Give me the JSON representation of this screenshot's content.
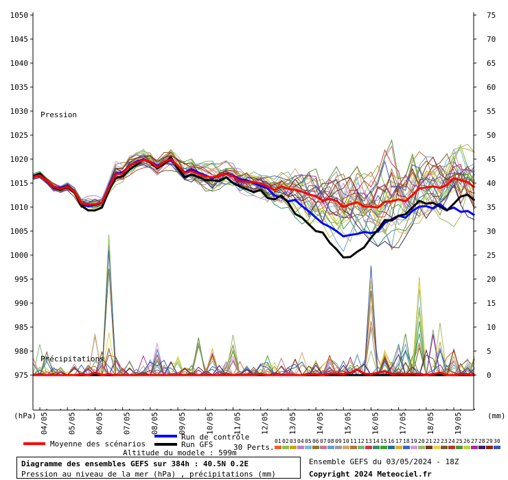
{
  "chart_data": {
    "type": "line",
    "title": "Diagramme des ensembles GEFS sur 384h : 40.5N 0.2E",
    "subtitle": "Pression au niveau de la mer (hPa) , précipitations (mm)",
    "left_axis": {
      "unit": "(hPa)",
      "ylim": [
        970,
        1050
      ],
      "ticks": [
        "1050",
        "1045",
        "1040",
        "1035",
        "1030",
        "1025",
        "1020",
        "1015",
        "1010",
        "1005",
        "1000",
        "995",
        "990",
        "985",
        "980",
        "975"
      ]
    },
    "right_axis": {
      "unit": "(mm)",
      "ylim": [
        0,
        75
      ],
      "ticks": [
        "75",
        "70",
        "65",
        "60",
        "55",
        "50",
        "45",
        "40",
        "35",
        "30",
        "25",
        "20",
        "15",
        "10",
        "5",
        "0"
      ]
    },
    "x_labels": [
      "04/05",
      "05/05",
      "06/05",
      "07/05",
      "08/05",
      "09/05",
      "10/05",
      "11/05",
      "12/05",
      "13/05",
      "14/05",
      "15/05",
      "16/05",
      "17/05",
      "18/05",
      "19/05"
    ],
    "annotations": {
      "pressure": "Pression",
      "precip": "Précipitations"
    },
    "grid": false,
    "steps_per_day": 4,
    "day0_step_offset": 1,
    "series": [
      {
        "name": "Moyenne des scénarios",
        "color": "#ff0000",
        "pressure": [
          1016.3,
          1016.6,
          1015.5,
          1014.2,
          1013.8,
          1014.3,
          1013.2,
          1010.8,
          1010.5,
          1010.6,
          1010.9,
          1014.0,
          1016.8,
          1017.0,
          1018.6,
          1019.3,
          1019.8,
          1019.5,
          1018.3,
          1019.4,
          1020.0,
          1018.6,
          1017.1,
          1017.5,
          1016.9,
          1016.4,
          1016.2,
          1016.5,
          1016.9,
          1016.4,
          1015.4,
          1015.3,
          1015.2,
          1014.9,
          1014.3,
          1013.5,
          1014.3,
          1013.8,
          1013.6,
          1013.2,
          1012.6,
          1012.3,
          1011.3,
          1011.7,
          1011.3,
          1010.0,
          1010.6,
          1011.0,
          1010.1,
          1010.1,
          1009.9,
          1011.1,
          1011.2,
          1011.6,
          1011.2,
          1012.5,
          1013.9,
          1014.1,
          1014.3,
          1014.0,
          1014.6,
          1016.0,
          1015.6,
          1015.2,
          1014.1
        ],
        "precip": [
          0.0,
          0.0,
          0.0,
          0.0,
          0.0,
          0.0,
          0.0,
          0.2,
          0.0,
          0.5,
          0.0,
          0.2,
          0.0,
          0.0,
          0.0,
          0.0,
          0.0,
          0.0,
          0.0,
          0.0,
          0.0,
          0.0,
          0.0,
          0.0,
          0.0,
          0.0,
          0.0,
          0.0,
          0.0,
          0.0,
          0.0,
          0.0,
          0.0,
          0.2,
          0.0,
          0.0,
          0.0,
          0.0,
          0.0,
          0.0,
          0.2,
          0.2,
          0.0,
          0.3,
          0.3,
          0.2,
          0.5,
          1.2,
          0.3,
          0.2,
          0.5,
          0.8,
          0.2,
          0.3,
          0.2,
          0.3,
          0.2,
          0.0,
          0.2,
          0.5,
          0.0,
          0.0,
          0.2,
          0.2,
          0.0
        ]
      },
      {
        "name": "Run de contrôle",
        "color": "#0000ff",
        "pressure": [
          1016.5,
          1016.9,
          1015.4,
          1014.2,
          1014.0,
          1014.5,
          1013.1,
          1010.5,
          1010.2,
          1010.5,
          1010.9,
          1014.1,
          1016.9,
          1017.3,
          1018.5,
          1019.5,
          1019.9,
          1019.5,
          1018.6,
          1019.3,
          1019.8,
          1018.6,
          1017.2,
          1017.9,
          1017.2,
          1016.6,
          1016.0,
          1016.5,
          1017.0,
          1016.6,
          1015.8,
          1015.6,
          1015.0,
          1014.4,
          1013.9,
          1012.4,
          1012.1,
          1011.2,
          1011.5,
          1010.2,
          1009.1,
          1007.8,
          1006.6,
          1005.9,
          1005.0,
          1003.9,
          1004.2,
          1004.4,
          1004.8,
          1004.6,
          1004.9,
          1006.7,
          1007.5,
          1008.2,
          1007.8,
          1009.2,
          1010.1,
          1010.2,
          1009.7,
          1010.6,
          1009.4,
          1009.9,
          1009.0,
          1009.2,
          1008.3
        ],
        "precip": [
          0.0,
          0.0,
          0.0,
          0.0,
          0.0,
          0.0,
          0.0,
          0.0,
          0.0,
          0.0,
          0.0,
          0.0,
          0.0,
          0.0,
          0.0,
          0.0,
          0.0,
          0.0,
          0.0,
          0.0,
          0.0,
          0.0,
          0.0,
          0.0,
          0.0,
          0.0,
          0.0,
          0.0,
          0.0,
          0.0,
          0.0,
          0.0,
          0.0,
          0.0,
          0.0,
          0.0,
          0.0,
          0.0,
          0.0,
          0.0,
          0.0,
          0.0,
          0.0,
          0.0,
          0.0,
          0.0,
          0.0,
          0.0,
          0.0,
          0.0,
          0.0,
          0.0,
          0.0,
          0.0,
          0.0,
          0.0,
          0.0,
          0.0,
          0.0,
          0.0,
          0.0,
          0.0,
          0.0,
          0.0,
          0.0
        ]
      },
      {
        "name": "Run GFS",
        "color": "#000000",
        "pressure": [
          1016.4,
          1017.0,
          1015.5,
          1014.1,
          1013.6,
          1014.2,
          1013.0,
          1010.3,
          1009.3,
          1009.3,
          1009.9,
          1013.4,
          1016.1,
          1016.4,
          1017.8,
          1018.8,
          1019.9,
          1019.3,
          1018.1,
          1019.0,
          1020.4,
          1018.1,
          1016.2,
          1016.8,
          1016.3,
          1015.6,
          1015.6,
          1015.4,
          1016.2,
          1015.0,
          1014.3,
          1013.7,
          1013.1,
          1013.6,
          1011.9,
          1011.6,
          1012.4,
          1010.9,
          1008.6,
          1007.8,
          1006.4,
          1005.0,
          1004.7,
          1002.6,
          1001.2,
          999.5,
          999.6,
          1000.7,
          1001.6,
          1003.6,
          1005.3,
          1007.3,
          1007.2,
          1008.2,
          1008.5,
          1009.9,
          1011.3,
          1010.7,
          1010.9,
          1010.1,
          1009.3,
          1010.7,
          1012.2,
          1012.6,
          1011.4
        ],
        "precip": [
          0.0,
          0.0,
          0.0,
          0.0,
          0.0,
          0.0,
          0.0,
          0.0,
          0.0,
          0.0,
          0.0,
          0.0,
          0.0,
          0.0,
          0.0,
          0.0,
          0.0,
          0.0,
          0.0,
          0.0,
          0.0,
          0.0,
          0.0,
          0.0,
          0.0,
          0.0,
          0.0,
          0.0,
          0.0,
          0.0,
          0.0,
          0.0,
          0.0,
          0.0,
          0.0,
          0.0,
          0.0,
          0.0,
          0.0,
          0.0,
          0.0,
          0.0,
          0.0,
          0.0,
          0.0,
          0.0,
          0.0,
          0.0,
          0.0,
          0.0,
          0.0,
          0.0,
          0.0,
          0.0,
          0.0,
          0.0,
          0.0,
          0.0,
          0.0,
          0.0,
          0.0,
          0.0,
          0.0,
          0.0,
          0.0
        ]
      }
    ],
    "perturbations": {
      "count": 30,
      "colors": [
        "#e9622d",
        "#8cc051",
        "#c3a523",
        "#bd7ed8",
        "#7cb8d5",
        "#8d7a36",
        "#c27c8d",
        "#6b9fd4",
        "#9e9e9e",
        "#d4a672",
        "#b17643",
        "#7fb47e",
        "#c63c4a",
        "#3b8c6e",
        "#3ba32c",
        "#2e6b94",
        "#d8b233",
        "#3a67c6",
        "#d49adc",
        "#9db86c",
        "#6b3b1f",
        "#e2d648",
        "#7a5b2e",
        "#a83c2d",
        "#5c8e3b",
        "#b8d640",
        "#a7319b",
        "#3a1e6e",
        "#7d2a1e",
        "#3d56b6"
      ],
      "pressure_spread": [
        [
          1015.7,
          1017.3
        ],
        [
          1016.1,
          1017.7
        ],
        [
          1014.8,
          1016.3
        ],
        [
          1013.0,
          1015.2
        ],
        [
          1012.8,
          1014.6
        ],
        [
          1013.0,
          1015.3
        ],
        [
          1011.8,
          1014.1
        ],
        [
          1008.8,
          1011.6
        ],
        [
          1008.9,
          1012.3
        ],
        [
          1008.6,
          1012.4
        ],
        [
          1009.2,
          1012.9
        ],
        [
          1012.2,
          1016.0
        ],
        [
          1014.6,
          1020.1
        ],
        [
          1015.2,
          1020.0
        ],
        [
          1016.1,
          1021.2
        ],
        [
          1017.5,
          1021.9
        ],
        [
          1017.6,
          1022.4
        ],
        [
          1017.2,
          1021.3
        ],
        [
          1016.2,
          1019.9
        ],
        [
          1017.4,
          1021.4
        ],
        [
          1017.3,
          1022.3
        ],
        [
          1016.8,
          1020.9
        ],
        [
          1014.4,
          1019.9
        ],
        [
          1014.6,
          1020.5
        ],
        [
          1013.3,
          1019.3
        ],
        [
          1012.0,
          1019.5
        ],
        [
          1012.2,
          1019.6
        ],
        [
          1013.2,
          1019.0
        ],
        [
          1013.7,
          1019.7
        ],
        [
          1013.4,
          1019.2
        ],
        [
          1012.0,
          1019.0
        ],
        [
          1011.7,
          1019.3
        ],
        [
          1011.4,
          1018.8
        ],
        [
          1011.0,
          1018.3
        ],
        [
          1010.5,
          1018.7
        ],
        [
          1009.8,
          1018.0
        ],
        [
          1009.6,
          1019.0
        ],
        [
          1008.6,
          1017.4
        ],
        [
          1007.6,
          1019.5
        ],
        [
          1006.4,
          1019.3
        ],
        [
          1004.1,
          1019.1
        ],
        [
          1003.2,
          1018.0
        ],
        [
          1002.3,
          1017.6
        ],
        [
          1001.9,
          1019.7
        ],
        [
          1000.7,
          1019.2
        ],
        [
          1000.7,
          1019.7
        ],
        [
          1001.4,
          1019.8
        ],
        [
          1002.2,
          1022.2
        ],
        [
          1003.7,
          1022.2
        ],
        [
          1002.3,
          1019.6
        ],
        [
          1001.8,
          1020.2
        ],
        [
          1002.4,
          1025.4
        ],
        [
          1000.3,
          1024.6
        ],
        [
          1001.4,
          1021.5
        ],
        [
          1001.8,
          1021.1
        ],
        [
          1002.2,
          1023.1
        ],
        [
          1002.5,
          1021.6
        ],
        [
          1003.1,
          1020.5
        ],
        [
          1003.7,
          1020.4
        ],
        [
          1004.6,
          1021.4
        ],
        [
          1005.6,
          1021.8
        ],
        [
          1004.4,
          1022.0
        ],
        [
          1004.0,
          1023.5
        ],
        [
          1004.1,
          1023.1
        ],
        [
          1004.3,
          1021.4
        ]
      ],
      "precip_peaks": [
        3.6,
        6.4,
        4.8,
        1.6,
        1.6,
        0.6,
        2.3,
        2.1,
        2.0,
        8.6,
        4.8,
        29.3,
        3.8,
        1.4,
        3.0,
        1.2,
        4.0,
        3.2,
        6.7,
        3.1,
        2.8,
        3.9,
        1.5,
        2.0,
        7.8,
        1.2,
        5.5,
        2.0,
        2.8,
        8.4,
        2.8,
        1.9,
        1.6,
        2.4,
        4.0,
        2.6,
        3.5,
        1.6,
        3.3,
        4.7,
        1.9,
        3.0,
        2.0,
        4.1,
        2.5,
        2.9,
        3.7,
        4.3,
        3.0,
        22.8,
        3.4,
        5.2,
        2.7,
        6.4,
        8.6,
        3.9,
        20.4,
        5.2,
        9.5,
        10.9,
        3.7,
        5.4,
        2.4,
        3.4,
        3.9
      ]
    }
  },
  "legend": {
    "mean_label": "Moyenne des scénarios",
    "control_label": "Run de contrôle",
    "gfs_label": "Run GFS",
    "altitude_label": "Altitude du modele : 599m",
    "perts_label": "30 Perts.",
    "pert_numbers": [
      "01",
      "02",
      "03",
      "04",
      "05",
      "06",
      "07",
      "08",
      "09",
      "10",
      "11",
      "12",
      "13",
      "14",
      "15",
      "16",
      "17",
      "18",
      "19",
      "20",
      "21",
      "22",
      "23",
      "24",
      "25",
      "26",
      "27",
      "28",
      "29",
      "30"
    ]
  },
  "caption": {
    "title": "Diagramme des ensembles GEFS sur 384h : 40.5N 0.2E",
    "subtitle": "Pression au niveau de la mer (hPa) , précipitations (mm)"
  },
  "footer": {
    "ensemble_info": "Ensemble GEFS du 03/05/2024 - 18Z",
    "copyright": "Copyright 2024 Meteociel.fr"
  }
}
